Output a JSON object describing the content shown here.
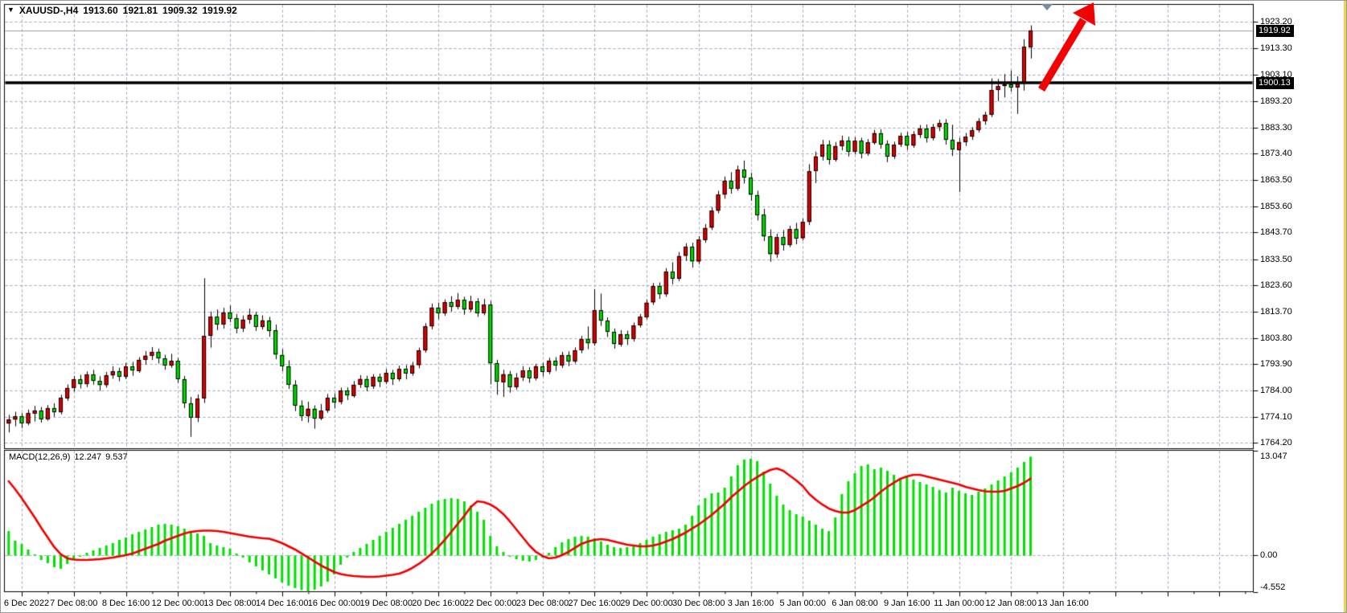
{
  "header": {
    "dropdown_icon": "▼",
    "symbol_period": "XAUUSD-,H4",
    "open": "1913.60",
    "high": "1921.81",
    "low": "1909.32",
    "close": "1919.92"
  },
  "price_axis": {
    "labels": [
      "1923.20",
      "1913.30",
      "1903.10",
      "1893.20",
      "1883.30",
      "1873.40",
      "1863.50",
      "1853.60",
      "1843.70",
      "1833.50",
      "1823.60",
      "1813.70",
      "1803.80",
      "1793.90",
      "1784.00",
      "1774.10",
      "1764.20"
    ],
    "current_price_badge": "1919.92",
    "line_price_badge": "1900.13"
  },
  "time_axis": {
    "labels": [
      "6 Dec 2022",
      "7 Dec 08:00",
      "8 Dec 16:00",
      "12 Dec 00:00",
      "13 Dec 08:00",
      "14 Dec 16:00",
      "16 Dec 00:00",
      "19 Dec 08:00",
      "20 Dec 16:00",
      "22 Dec 00:00",
      "23 Dec 08:00",
      "27 Dec 16:00",
      "29 Dec 00:00",
      "30 Dec 08:00",
      "3 Jan 16:00",
      "5 Jan 00:00",
      "6 Jan 08:00",
      "9 Jan 16:00",
      "11 Jan 00:00",
      "12 Jan 08:00",
      "13 Jan 16:00"
    ]
  },
  "macd_panel": {
    "indicator_name": "MACD(12,26,9)",
    "macd_value": "12.247",
    "signal_value": "9.537",
    "scale_max": "13.047",
    "scale_zero": "0.00",
    "scale_min": "-4.552"
  },
  "colors": {
    "bull_candle": "#e00000",
    "bear_candle": "#00dc00",
    "wick": "#000000",
    "grid": "#97a5b6",
    "macd_histogram": "#00e000",
    "macd_signal": "#ee0000",
    "horizontal_line": "#000000",
    "current_price_line": "#9e9e9e",
    "arrow": "#f40000",
    "panel_border": "#000000",
    "background": "#ffffff"
  },
  "chart_data": {
    "type": "candlestick",
    "symbol": "XAUUSD-",
    "timeframe": "H4",
    "price_axis_values": [
      1923.2,
      1913.3,
      1903.1,
      1893.2,
      1883.3,
      1873.4,
      1863.5,
      1853.6,
      1843.7,
      1833.5,
      1823.6,
      1813.7,
      1803.8,
      1793.9,
      1784.0,
      1774.1,
      1764.2
    ],
    "price_range": [
      1764.2,
      1923.2
    ],
    "current_price": 1919.92,
    "horizontal_line_price": 1900.13,
    "annotations": {
      "trend_arrow": "up-right red arrow above last candles",
      "scroll_marker": "chart-shift triangle top right"
    },
    "candles_ohlc": [
      [
        1771.5,
        1774.8,
        1768.2,
        1773.0
      ],
      [
        1773.0,
        1776.0,
        1770.5,
        1774.2
      ],
      [
        1774.2,
        1775.5,
        1769.8,
        1771.6
      ],
      [
        1771.6,
        1776.8,
        1770.9,
        1775.4
      ],
      [
        1775.4,
        1778.2,
        1772.3,
        1776.5
      ],
      [
        1776.5,
        1777.8,
        1771.9,
        1773.2
      ],
      [
        1773.2,
        1778.5,
        1772.6,
        1777.4
      ],
      [
        1777.4,
        1779.2,
        1774.1,
        1775.8
      ],
      [
        1775.8,
        1782.4,
        1775.0,
        1781.2
      ],
      [
        1781.2,
        1786.3,
        1780.1,
        1785.0
      ],
      [
        1785.0,
        1789.5,
        1783.6,
        1788.2
      ],
      [
        1788.2,
        1789.9,
        1784.8,
        1786.4
      ],
      [
        1786.4,
        1791.2,
        1785.3,
        1790.1
      ],
      [
        1790.1,
        1791.8,
        1786.2,
        1787.6
      ],
      [
        1787.6,
        1789.4,
        1783.9,
        1786.0
      ],
      [
        1786.0,
        1791.0,
        1785.1,
        1789.7
      ],
      [
        1789.7,
        1793.2,
        1788.4,
        1791.3
      ],
      [
        1791.3,
        1792.6,
        1787.5,
        1789.2
      ],
      [
        1789.2,
        1794.4,
        1788.3,
        1793.1
      ],
      [
        1793.1,
        1794.8,
        1789.6,
        1791.5
      ],
      [
        1791.5,
        1796.6,
        1790.7,
        1795.6
      ],
      [
        1795.6,
        1798.9,
        1793.8,
        1797.2
      ],
      [
        1797.2,
        1800.4,
        1795.5,
        1798.6
      ],
      [
        1798.6,
        1799.8,
        1794.2,
        1796.1
      ],
      [
        1796.1,
        1797.5,
        1791.8,
        1793.4
      ],
      [
        1793.4,
        1797.9,
        1792.6,
        1795.2
      ],
      [
        1795.2,
        1796.3,
        1786.9,
        1788.3
      ],
      [
        1788.3,
        1789.5,
        1777.4,
        1779.2
      ],
      [
        1779.2,
        1781.6,
        1766.5,
        1773.8
      ],
      [
        1773.8,
        1782.5,
        1772.1,
        1781.0
      ],
      [
        1781.0,
        1826.4,
        1779.3,
        1804.6
      ],
      [
        1804.6,
        1813.8,
        1800.2,
        1811.9
      ],
      [
        1811.9,
        1814.6,
        1806.8,
        1808.9
      ],
      [
        1808.9,
        1815.2,
        1807.4,
        1813.5
      ],
      [
        1813.5,
        1816.1,
        1809.8,
        1811.2
      ],
      [
        1811.2,
        1812.9,
        1805.6,
        1807.4
      ],
      [
        1807.4,
        1812.3,
        1806.1,
        1810.8
      ],
      [
        1810.8,
        1814.9,
        1809.2,
        1812.6
      ],
      [
        1812.6,
        1813.7,
        1806.5,
        1808.2
      ],
      [
        1808.2,
        1812.4,
        1807.0,
        1810.5
      ],
      [
        1810.5,
        1811.8,
        1804.3,
        1806.7
      ],
      [
        1806.7,
        1808.9,
        1795.8,
        1797.5
      ],
      [
        1797.5,
        1799.6,
        1791.3,
        1793.2
      ],
      [
        1793.2,
        1795.4,
        1784.6,
        1786.3
      ],
      [
        1786.3,
        1787.9,
        1776.2,
        1778.4
      ],
      [
        1778.4,
        1780.3,
        1772.5,
        1774.6
      ],
      [
        1774.6,
        1779.8,
        1771.9,
        1777.2
      ],
      [
        1777.2,
        1778.4,
        1769.6,
        1773.5
      ],
      [
        1773.5,
        1778.9,
        1772.8,
        1776.4
      ],
      [
        1776.4,
        1782.7,
        1775.6,
        1781.3
      ],
      [
        1781.3,
        1782.9,
        1777.2,
        1779.6
      ],
      [
        1779.6,
        1785.1,
        1778.8,
        1783.9
      ],
      [
        1783.9,
        1785.2,
        1780.4,
        1782.1
      ],
      [
        1782.1,
        1787.6,
        1781.3,
        1786.2
      ],
      [
        1786.2,
        1789.8,
        1785.0,
        1788.4
      ],
      [
        1788.4,
        1789.6,
        1783.7,
        1785.5
      ],
      [
        1785.5,
        1790.2,
        1784.6,
        1789.1
      ],
      [
        1789.1,
        1790.4,
        1785.3,
        1787.2
      ],
      [
        1787.2,
        1792.1,
        1786.4,
        1790.6
      ],
      [
        1790.6,
        1791.8,
        1786.1,
        1788.3
      ],
      [
        1788.3,
        1793.4,
        1787.5,
        1792.2
      ],
      [
        1792.2,
        1793.6,
        1788.2,
        1790.4
      ],
      [
        1790.4,
        1794.8,
        1789.6,
        1793.5
      ],
      [
        1793.5,
        1800.2,
        1792.4,
        1799.1
      ],
      [
        1799.1,
        1809.4,
        1798.3,
        1808.2
      ],
      [
        1808.2,
        1816.8,
        1807.1,
        1815.3
      ],
      [
        1815.3,
        1817.2,
        1810.9,
        1813.1
      ],
      [
        1813.1,
        1818.4,
        1812.2,
        1817.3
      ],
      [
        1817.3,
        1819.6,
        1813.8,
        1815.6
      ],
      [
        1815.6,
        1820.8,
        1814.7,
        1818.2
      ],
      [
        1818.2,
        1819.4,
        1812.6,
        1814.5
      ],
      [
        1814.5,
        1819.8,
        1813.6,
        1817.6
      ],
      [
        1817.6,
        1818.9,
        1811.8,
        1813.2
      ],
      [
        1813.2,
        1818.6,
        1812.4,
        1816.4
      ],
      [
        1816.4,
        1817.8,
        1786.3,
        1794.2
      ],
      [
        1794.2,
        1795.6,
        1782.4,
        1787.3
      ],
      [
        1787.3,
        1791.8,
        1781.6,
        1790.2
      ],
      [
        1790.2,
        1791.4,
        1783.2,
        1785.4
      ],
      [
        1785.4,
        1790.6,
        1784.3,
        1788.9
      ],
      [
        1788.9,
        1793.2,
        1787.6,
        1791.6
      ],
      [
        1791.6,
        1792.8,
        1786.9,
        1788.7
      ],
      [
        1788.7,
        1794.1,
        1787.8,
        1793.2
      ],
      [
        1793.2,
        1794.5,
        1789.3,
        1791.1
      ],
      [
        1791.1,
        1796.4,
        1790.2,
        1795.3
      ],
      [
        1795.3,
        1796.6,
        1791.4,
        1793.4
      ],
      [
        1793.4,
        1798.6,
        1792.5,
        1797.4
      ],
      [
        1797.4,
        1798.8,
        1793.2,
        1795.1
      ],
      [
        1795.1,
        1800.3,
        1794.2,
        1799.2
      ],
      [
        1799.2,
        1804.6,
        1798.1,
        1803.4
      ],
      [
        1803.4,
        1808.2,
        1799.6,
        1801.8
      ],
      [
        1801.8,
        1822.3,
        1800.9,
        1814.2
      ],
      [
        1814.2,
        1820.6,
        1808.4,
        1810.3
      ],
      [
        1810.3,
        1811.6,
        1804.2,
        1806.1
      ],
      [
        1806.1,
        1807.4,
        1799.8,
        1801.5
      ],
      [
        1801.5,
        1806.8,
        1800.6,
        1805.3
      ],
      [
        1805.3,
        1806.6,
        1801.2,
        1803.4
      ],
      [
        1803.4,
        1809.7,
        1802.5,
        1808.6
      ],
      [
        1808.6,
        1812.9,
        1807.8,
        1811.8
      ],
      [
        1811.8,
        1818.4,
        1810.9,
        1817.2
      ],
      [
        1817.2,
        1824.6,
        1816.3,
        1823.4
      ],
      [
        1823.4,
        1824.8,
        1818.6,
        1820.3
      ],
      [
        1820.3,
        1830.2,
        1819.4,
        1828.9
      ],
      [
        1828.9,
        1832.4,
        1824.1,
        1826.2
      ],
      [
        1826.2,
        1836.3,
        1825.3,
        1834.8
      ],
      [
        1834.8,
        1839.6,
        1832.9,
        1838.2
      ],
      [
        1838.2,
        1839.8,
        1830.4,
        1832.6
      ],
      [
        1832.6,
        1842.3,
        1831.7,
        1840.9
      ],
      [
        1840.9,
        1846.8,
        1839.8,
        1845.4
      ],
      [
        1845.4,
        1853.2,
        1844.6,
        1851.8
      ],
      [
        1851.8,
        1859.4,
        1850.9,
        1857.9
      ],
      [
        1857.9,
        1864.8,
        1856.4,
        1863.2
      ],
      [
        1863.2,
        1866.4,
        1858.3,
        1860.2
      ],
      [
        1860.2,
        1868.9,
        1859.4,
        1867.4
      ],
      [
        1867.4,
        1870.8,
        1862.1,
        1864.3
      ],
      [
        1864.3,
        1866.2,
        1855.6,
        1857.8
      ],
      [
        1857.8,
        1859.4,
        1848.2,
        1850.3
      ],
      [
        1850.3,
        1852.6,
        1840.4,
        1842.1
      ],
      [
        1842.1,
        1844.8,
        1832.6,
        1835.3
      ],
      [
        1835.3,
        1843.2,
        1834.1,
        1841.8
      ],
      [
        1841.8,
        1844.6,
        1836.8,
        1838.9
      ],
      [
        1838.9,
        1846.2,
        1838.1,
        1844.9
      ],
      [
        1844.9,
        1847.3,
        1839.2,
        1841.4
      ],
      [
        1841.4,
        1848.9,
        1840.6,
        1847.6
      ],
      [
        1847.6,
        1869.4,
        1846.4,
        1866.8
      ],
      [
        1866.8,
        1874.2,
        1862.3,
        1872.4
      ],
      [
        1872.4,
        1878.6,
        1870.8,
        1876.9
      ],
      [
        1876.9,
        1878.4,
        1869.3,
        1871.2
      ],
      [
        1871.2,
        1877.8,
        1870.4,
        1876.3
      ],
      [
        1876.3,
        1880.2,
        1874.6,
        1878.4
      ],
      [
        1878.4,
        1879.8,
        1872.3,
        1874.1
      ],
      [
        1874.1,
        1879.6,
        1873.2,
        1878.2
      ],
      [
        1878.2,
        1879.4,
        1871.6,
        1873.4
      ],
      [
        1873.4,
        1878.9,
        1872.6,
        1877.6
      ],
      [
        1877.6,
        1882.4,
        1876.8,
        1881.2
      ],
      [
        1881.2,
        1882.6,
        1875.3,
        1877.1
      ],
      [
        1877.1,
        1878.4,
        1870.2,
        1872.3
      ],
      [
        1872.3,
        1877.9,
        1871.4,
        1876.8
      ],
      [
        1876.8,
        1881.3,
        1875.9,
        1880.1
      ],
      [
        1880.1,
        1881.6,
        1874.8,
        1876.4
      ],
      [
        1876.4,
        1881.9,
        1875.6,
        1880.6
      ],
      [
        1880.6,
        1884.2,
        1879.3,
        1882.9
      ],
      [
        1882.9,
        1884.4,
        1877.6,
        1879.3
      ],
      [
        1879.3,
        1884.6,
        1878.4,
        1883.4
      ],
      [
        1883.4,
        1886.2,
        1881.9,
        1884.9
      ],
      [
        1884.9,
        1886.4,
        1876.8,
        1878.6
      ],
      [
        1878.6,
        1884.3,
        1872.5,
        1874.9
      ],
      [
        1874.9,
        1879.4,
        1858.9,
        1877.8
      ],
      [
        1877.8,
        1881.2,
        1876.3,
        1879.8
      ],
      [
        1879.8,
        1883.4,
        1878.6,
        1882.3
      ],
      [
        1882.3,
        1886.8,
        1881.4,
        1885.7
      ],
      [
        1885.7,
        1889.2,
        1884.3,
        1888.1
      ],
      [
        1888.1,
        1901.8,
        1887.2,
        1897.4
      ],
      [
        1897.4,
        1901.6,
        1893.2,
        1898.9
      ],
      [
        1898.9,
        1903.4,
        1894.6,
        1899.6
      ],
      [
        1899.6,
        1904.8,
        1896.8,
        1898.4
      ],
      [
        1898.4,
        1902.6,
        1888.4,
        1899.8
      ],
      [
        1899.8,
        1916.6,
        1897.2,
        1913.8
      ],
      [
        1913.6,
        1921.81,
        1909.32,
        1919.92
      ]
    ],
    "macd": {
      "parameters": "12,26,9",
      "range": [
        -4.552,
        13.047
      ],
      "histogram": [
        3.0,
        1.8,
        1.4,
        0.7,
        0.1,
        -0.6,
        -1.0,
        -1.5,
        -1.7,
        -1.1,
        -0.5,
        -0.2,
        0.3,
        0.6,
        0.9,
        1.2,
        1.5,
        1.9,
        2.2,
        2.6,
        2.9,
        3.2,
        3.5,
        3.8,
        3.9,
        3.8,
        3.6,
        3.3,
        3.0,
        2.7,
        2.4,
        1.5,
        1.2,
        1.0,
        0.8,
        0.2,
        -0.3,
        -0.9,
        -1.4,
        -1.9,
        -2.4,
        -2.9,
        -3.4,
        -3.8,
        -4.1,
        -4.35,
        -4.552,
        -4.3,
        -3.9,
        -3.3,
        -2.4,
        -1.2,
        -0.3,
        0.4,
        0.9,
        1.4,
        1.9,
        2.4,
        2.9,
        3.4,
        3.9,
        4.4,
        4.9,
        5.4,
        5.9,
        6.4,
        6.8,
        7.0,
        7.1,
        7.0,
        6.7,
        6.2,
        5.4,
        4.4,
        2.4,
        1.1,
        0.4,
        -0.2,
        -0.5,
        -0.7,
        -0.8,
        -0.6,
        -0.3,
        0.3,
        1.0,
        1.6,
        2.0,
        2.3,
        2.4,
        2.3,
        2.1,
        1.7,
        1.3,
        1.0,
        0.9,
        1.0,
        1.2,
        1.5,
        1.9,
        2.3,
        2.6,
        2.9,
        3.1,
        3.3,
        3.8,
        4.9,
        6.2,
        7.1,
        7.7,
        7.8,
        8.4,
        9.8,
        11.2,
        11.9,
        12.0,
        11.7,
        10.4,
        8.9,
        7.4,
        6.3,
        5.6,
        5.1,
        4.8,
        4.3,
        3.8,
        3.3,
        3.0,
        4.7,
        7.6,
        9.2,
        10.2,
        11.1,
        11.3,
        10.7,
        10.9,
        10.5,
        10.0,
        9.6,
        9.8,
        9.4,
        9.1,
        8.8,
        8.5,
        8.1,
        7.8,
        8.4,
        8.0,
        7.7,
        7.5,
        7.9,
        8.3,
        8.8,
        9.3,
        9.8,
        10.3,
        10.9,
        11.6,
        12.247
      ],
      "signal": [
        9.2,
        8.2,
        7.1,
        5.9,
        4.7,
        3.4,
        2.2,
        1.0,
        0.1,
        -0.4,
        -0.55,
        -0.6,
        -0.6,
        -0.55,
        -0.5,
        -0.4,
        -0.3,
        -0.15,
        0.0,
        0.2,
        0.5,
        0.8,
        1.1,
        1.4,
        1.8,
        2.1,
        2.4,
        2.7,
        2.9,
        3.0,
        3.05,
        3.05,
        3.0,
        2.9,
        2.75,
        2.6,
        2.45,
        2.3,
        2.2,
        2.1,
        2.05,
        1.8,
        1.5,
        1.1,
        0.7,
        0.2,
        -0.3,
        -0.8,
        -1.3,
        -1.7,
        -2.1,
        -2.35,
        -2.5,
        -2.6,
        -2.65,
        -2.7,
        -2.7,
        -2.65,
        -2.55,
        -2.45,
        -2.3,
        -2.0,
        -1.6,
        -1.1,
        -0.5,
        0.2,
        1.0,
        1.9,
        2.9,
        3.9,
        4.9,
        6.0,
        6.7,
        6.6,
        6.3,
        5.8,
        5.1,
        4.2,
        3.2,
        2.2,
        1.2,
        0.4,
        -0.1,
        -0.4,
        -0.3,
        0.0,
        0.4,
        0.9,
        1.4,
        1.7,
        1.9,
        2.0,
        1.9,
        1.7,
        1.5,
        1.3,
        1.2,
        1.1,
        1.1,
        1.2,
        1.4,
        1.7,
        2.0,
        2.4,
        2.8,
        3.3,
        3.8,
        4.4,
        5.0,
        5.7,
        6.4,
        7.2,
        7.9,
        8.6,
        9.2,
        9.7,
        10.2,
        10.6,
        10.8,
        10.5,
        9.9,
        9.3,
        8.6,
        7.6,
        6.9,
        6.3,
        5.8,
        5.5,
        5.3,
        5.3,
        5.6,
        6.1,
        6.6,
        7.2,
        7.9,
        8.5,
        9.0,
        9.5,
        9.8,
        10.0,
        10.0,
        9.8,
        9.6,
        9.4,
        9.2,
        9.0,
        8.8,
        8.5,
        8.3,
        8.1,
        7.95,
        7.9,
        7.9,
        8.0,
        8.3,
        8.6,
        9.0,
        9.537
      ]
    }
  }
}
